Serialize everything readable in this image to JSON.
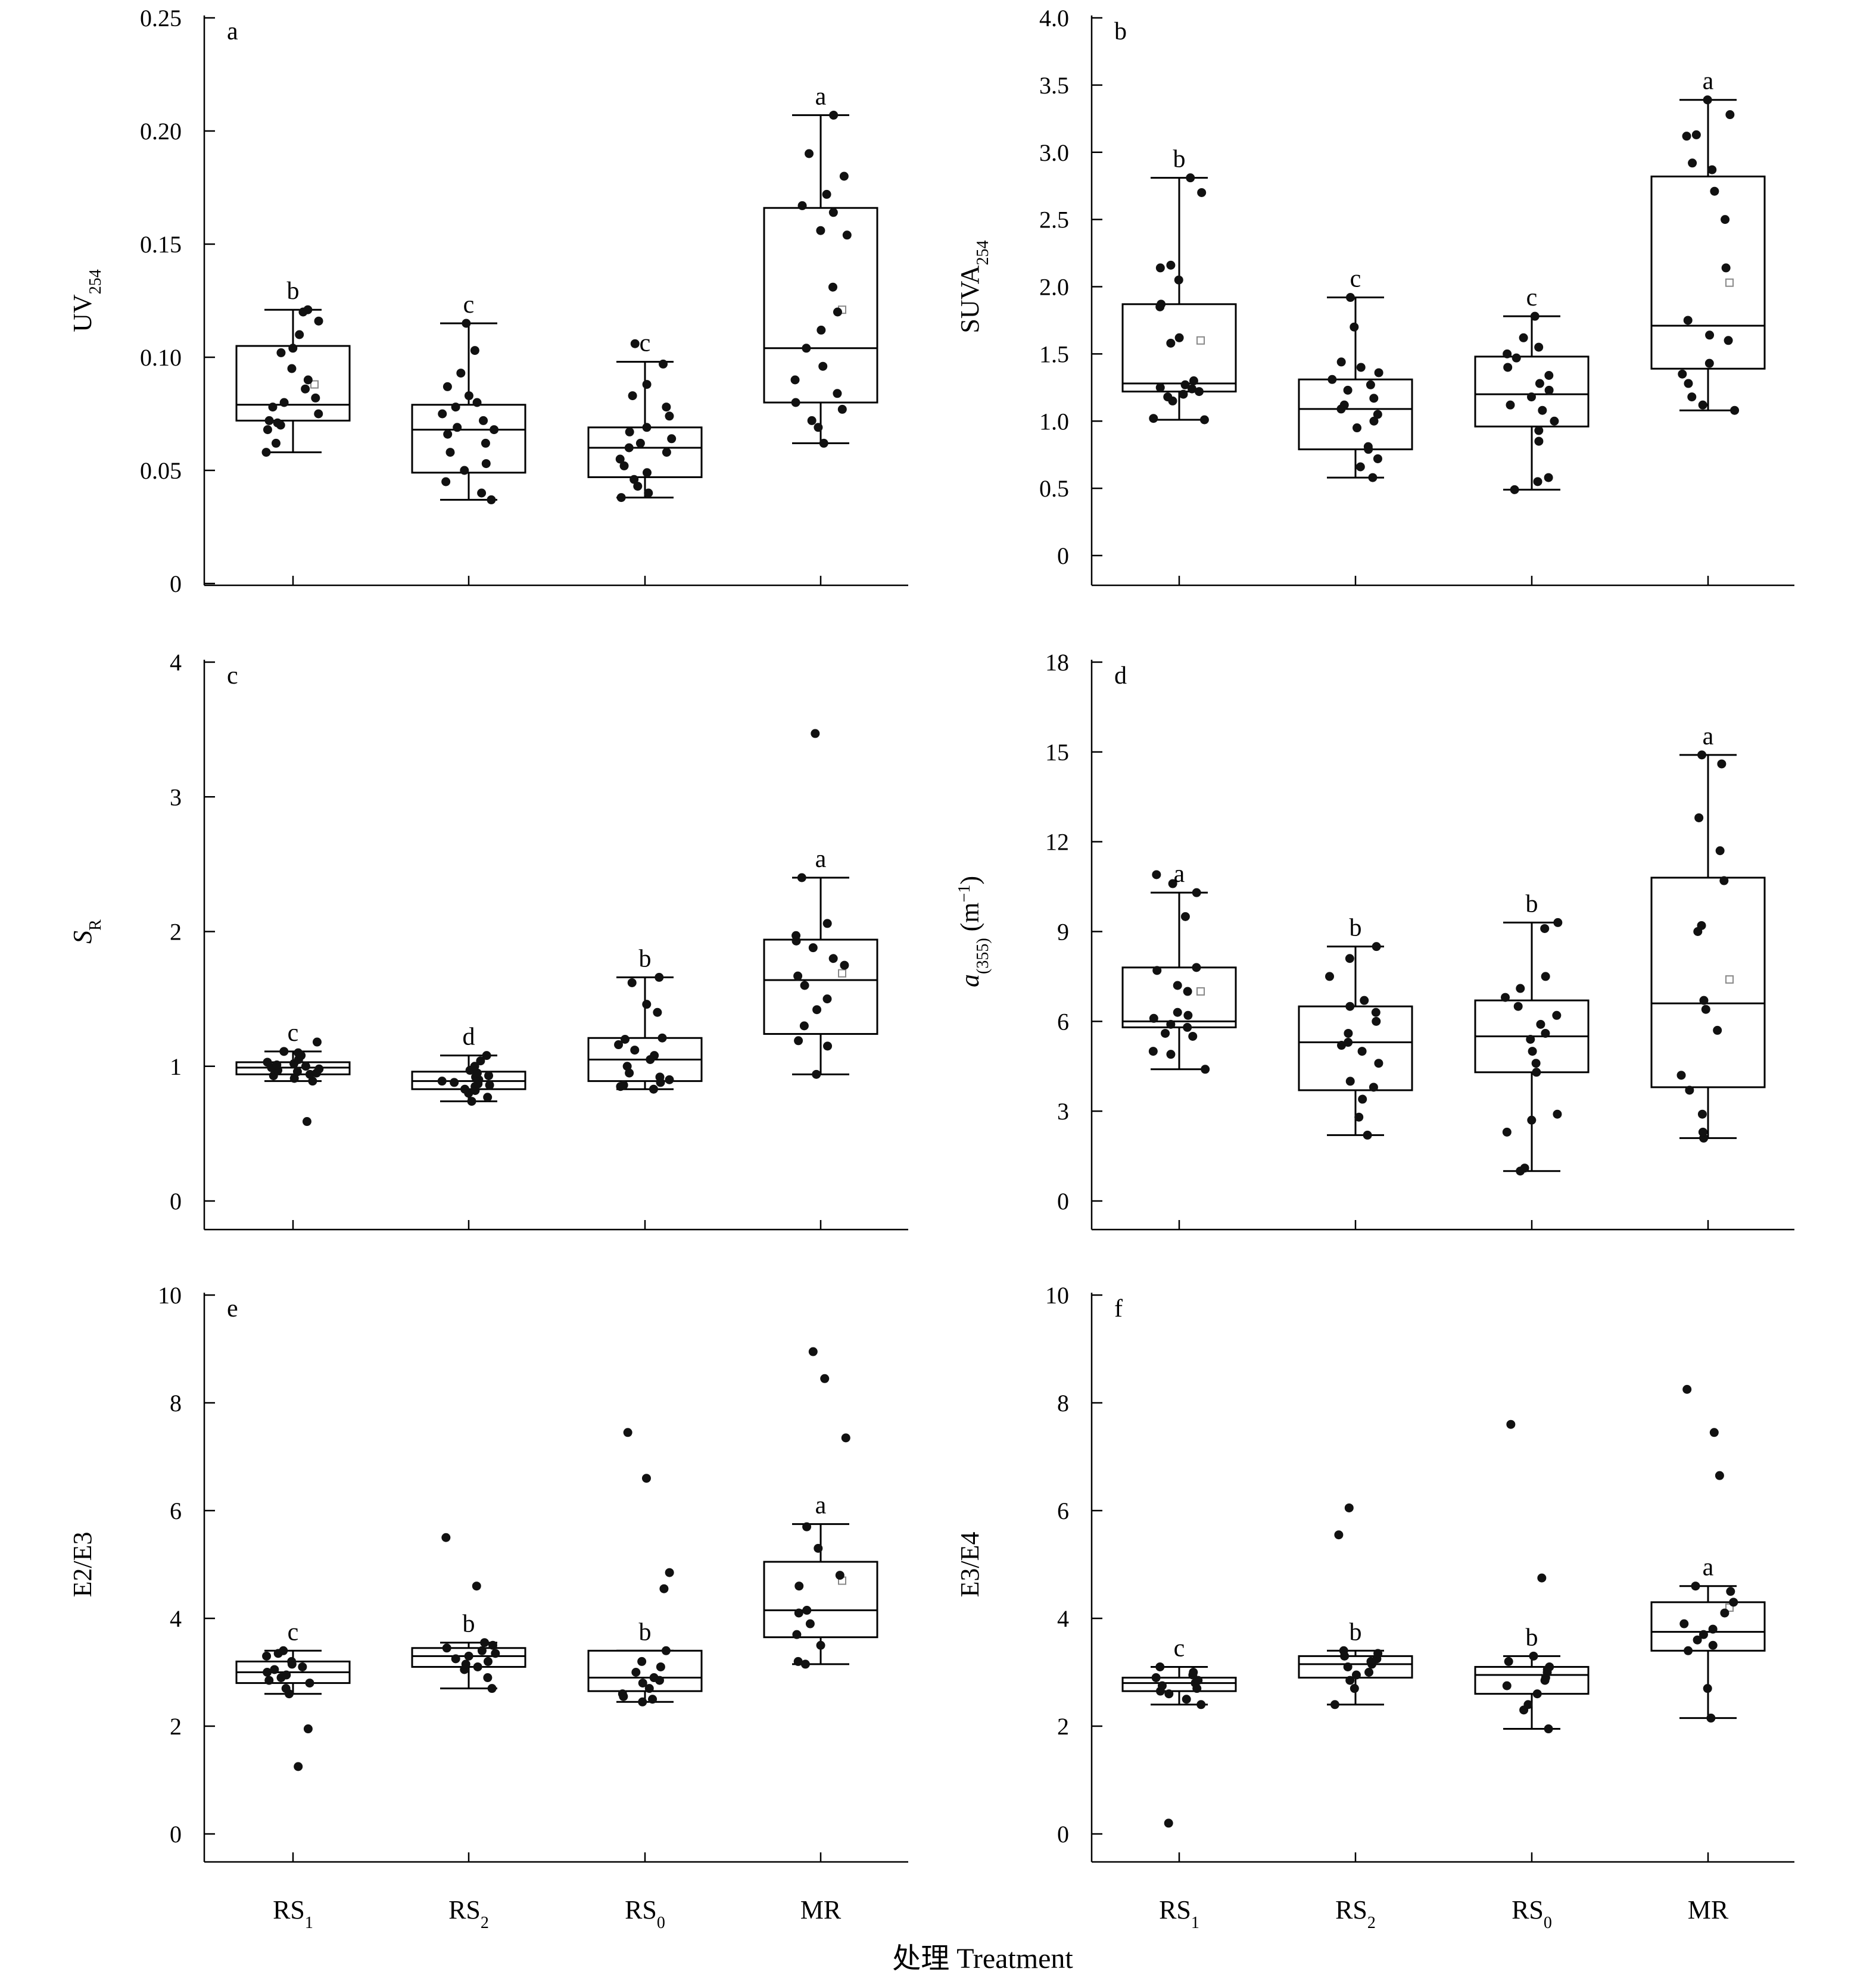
{
  "x_title": "处理 Treatment",
  "chart_data": [
    {
      "type": "box",
      "panel_letter": "a",
      "ylabel": "UV",
      "ylabel_sub": "254",
      "ylabel_italic": false,
      "ylim": [
        0,
        0.25
      ],
      "yticks": [
        0,
        0.05,
        0.1,
        0.15,
        0.2,
        0.25
      ],
      "ytick_labels": [
        "0",
        "0.05",
        "0.10",
        "0.15",
        "0.20",
        "0.25"
      ],
      "categories": [
        {
          "name": "RS",
          "sub": "1"
        },
        {
          "name": "RS",
          "sub": "2"
        },
        {
          "name": "RS",
          "sub": "0"
        },
        {
          "name": "MR",
          "sub": ""
        }
      ],
      "groups": [
        {
          "q1": 0.072,
          "median": 0.079,
          "q3": 0.105,
          "whisker_low": 0.058,
          "whisker_high": 0.121,
          "mean": 0.088,
          "sig": "b",
          "points": [
            0.058,
            0.062,
            0.068,
            0.07,
            0.071,
            0.072,
            0.075,
            0.078,
            0.08,
            0.082,
            0.086,
            0.09,
            0.095,
            0.102,
            0.104,
            0.11,
            0.116,
            0.12,
            0.121
          ]
        },
        {
          "q1": 0.049,
          "median": 0.068,
          "q3": 0.079,
          "whisker_low": 0.037,
          "whisker_high": 0.115,
          "mean": null,
          "sig": "c",
          "points": [
            0.037,
            0.04,
            0.045,
            0.05,
            0.053,
            0.058,
            0.062,
            0.066,
            0.068,
            0.069,
            0.072,
            0.075,
            0.078,
            0.08,
            0.083,
            0.087,
            0.093,
            0.103,
            0.115
          ]
        },
        {
          "q1": 0.047,
          "median": 0.06,
          "q3": 0.069,
          "whisker_low": 0.038,
          "whisker_high": 0.098,
          "mean": null,
          "sig": "c",
          "points": [
            0.038,
            0.04,
            0.043,
            0.046,
            0.049,
            0.052,
            0.055,
            0.058,
            0.06,
            0.062,
            0.064,
            0.067,
            0.069,
            0.074,
            0.078,
            0.083,
            0.088,
            0.097,
            0.106
          ]
        },
        {
          "q1": 0.08,
          "median": 0.104,
          "q3": 0.166,
          "whisker_low": 0.062,
          "whisker_high": 0.207,
          "mean": 0.121,
          "sig": "a",
          "points": [
            0.062,
            0.069,
            0.072,
            0.077,
            0.08,
            0.084,
            0.09,
            0.096,
            0.104,
            0.112,
            0.12,
            0.131,
            0.154,
            0.156,
            0.164,
            0.167,
            0.172,
            0.18,
            0.19,
            0.207
          ]
        }
      ]
    },
    {
      "type": "box",
      "panel_letter": "b",
      "ylabel": "SUVA",
      "ylabel_sub": "254",
      "ylabel_italic": false,
      "ylim": [
        0,
        4.0
      ],
      "yticks": [
        0,
        0.5,
        1.0,
        1.5,
        2.0,
        2.5,
        3.0,
        3.5,
        4.0
      ],
      "ytick_labels": [
        "0",
        "0.5",
        "1.0",
        "1.5",
        "2.0",
        "2.5",
        "3.0",
        "3.5",
        "4.0"
      ],
      "categories": [
        {
          "name": "RS",
          "sub": "1"
        },
        {
          "name": "RS",
          "sub": "2"
        },
        {
          "name": "RS",
          "sub": "0"
        },
        {
          "name": "MR",
          "sub": ""
        }
      ],
      "groups": [
        {
          "q1": 1.22,
          "median": 1.28,
          "q3": 1.87,
          "whisker_low": 1.01,
          "whisker_high": 2.81,
          "mean": 1.6,
          "sig": "b",
          "points": [
            1.01,
            1.02,
            1.15,
            1.18,
            1.2,
            1.22,
            1.24,
            1.25,
            1.27,
            1.3,
            1.58,
            1.62,
            1.85,
            1.87,
            2.05,
            2.14,
            2.16,
            2.7,
            2.81
          ]
        },
        {
          "q1": 0.79,
          "median": 1.09,
          "q3": 1.31,
          "whisker_low": 0.58,
          "whisker_high": 1.92,
          "mean": null,
          "sig": "c",
          "points": [
            0.58,
            0.66,
            0.72,
            0.79,
            0.81,
            0.95,
            1.0,
            1.05,
            1.09,
            1.12,
            1.17,
            1.23,
            1.27,
            1.31,
            1.36,
            1.4,
            1.44,
            1.7,
            1.92
          ]
        },
        {
          "q1": 0.96,
          "median": 1.2,
          "q3": 1.48,
          "whisker_low": 0.49,
          "whisker_high": 1.78,
          "mean": null,
          "sig": "c",
          "points": [
            0.49,
            0.55,
            0.58,
            0.85,
            0.93,
            1.0,
            1.08,
            1.12,
            1.18,
            1.23,
            1.28,
            1.34,
            1.4,
            1.47,
            1.5,
            1.55,
            1.62,
            1.78
          ]
        },
        {
          "q1": 1.39,
          "median": 1.71,
          "q3": 2.82,
          "whisker_low": 1.08,
          "whisker_high": 3.39,
          "mean": 2.03,
          "sig": "a",
          "points": [
            1.08,
            1.12,
            1.18,
            1.28,
            1.35,
            1.43,
            1.6,
            1.64,
            1.75,
            2.14,
            2.5,
            2.71,
            2.87,
            2.92,
            3.12,
            3.13,
            3.28,
            3.39
          ]
        }
      ]
    },
    {
      "type": "box",
      "panel_letter": "c",
      "ylabel": "S",
      "ylabel_sub": "R",
      "ylabel_italic": true,
      "ylim": [
        0,
        4
      ],
      "yticks": [
        0,
        1,
        2,
        3,
        4
      ],
      "ytick_labels": [
        "0",
        "1",
        "2",
        "3",
        "4"
      ],
      "categories": [
        {
          "name": "RS",
          "sub": "1"
        },
        {
          "name": "RS",
          "sub": "2"
        },
        {
          "name": "RS",
          "sub": "0"
        },
        {
          "name": "MR",
          "sub": ""
        }
      ],
      "groups": [
        {
          "q1": 0.94,
          "median": 0.99,
          "q3": 1.03,
          "whisker_low": 0.89,
          "whisker_high": 1.11,
          "mean": null,
          "sig": "c",
          "points": [
            0.59,
            0.89,
            0.91,
            0.93,
            0.94,
            0.95,
            0.96,
            0.97,
            0.98,
            0.99,
            1.0,
            1.01,
            1.02,
            1.03,
            1.05,
            1.08,
            1.1,
            1.11,
            1.18
          ]
        },
        {
          "q1": 0.83,
          "median": 0.89,
          "q3": 0.96,
          "whisker_low": 0.74,
          "whisker_high": 1.08,
          "mean": null,
          "sig": "d",
          "points": [
            0.74,
            0.77,
            0.8,
            0.82,
            0.83,
            0.85,
            0.86,
            0.87,
            0.88,
            0.89,
            0.9,
            0.92,
            0.93,
            0.95,
            0.97,
            1.0,
            1.04,
            1.08
          ]
        },
        {
          "q1": 0.89,
          "median": 1.05,
          "q3": 1.21,
          "whisker_low": 0.83,
          "whisker_high": 1.66,
          "mean": null,
          "sig": "b",
          "points": [
            0.83,
            0.85,
            0.86,
            0.88,
            0.9,
            0.92,
            0.95,
            1.0,
            1.05,
            1.08,
            1.12,
            1.16,
            1.2,
            1.21,
            1.4,
            1.46,
            1.62,
            1.66
          ]
        },
        {
          "q1": 1.24,
          "median": 1.64,
          "q3": 1.94,
          "whisker_low": 0.94,
          "whisker_high": 2.4,
          "mean": 1.69,
          "sig": "a",
          "points": [
            0.94,
            1.15,
            1.19,
            1.3,
            1.42,
            1.5,
            1.6,
            1.67,
            1.75,
            1.8,
            1.88,
            1.93,
            1.97,
            2.06,
            2.4,
            3.47
          ]
        }
      ]
    },
    {
      "type": "box",
      "panel_letter": "d",
      "ylabel": "a",
      "ylabel_sub": "(355)",
      "ylabel_suffix": " (m",
      "ylabel_sup": "−1",
      "ylabel_end": ")",
      "ylabel_italic": true,
      "ylim": [
        0,
        18
      ],
      "yticks": [
        0,
        3,
        6,
        9,
        12,
        15,
        18
      ],
      "ytick_labels": [
        "0",
        "3",
        "6",
        "9",
        "12",
        "15",
        "18"
      ],
      "categories": [
        {
          "name": "RS",
          "sub": "1"
        },
        {
          "name": "RS",
          "sub": "2"
        },
        {
          "name": "RS",
          "sub": "0"
        },
        {
          "name": "MR",
          "sub": ""
        }
      ],
      "groups": [
        {
          "q1": 5.8,
          "median": 6.0,
          "q3": 7.8,
          "whisker_low": 4.4,
          "whisker_high": 10.3,
          "mean": 7.0,
          "sig": "a",
          "points": [
            4.4,
            4.9,
            5.0,
            5.5,
            5.6,
            5.8,
            5.9,
            6.1,
            6.2,
            6.3,
            7.0,
            7.2,
            7.7,
            7.8,
            9.5,
            10.3,
            10.6,
            10.9
          ]
        },
        {
          "q1": 3.7,
          "median": 5.3,
          "q3": 6.5,
          "whisker_low": 2.2,
          "whisker_high": 8.5,
          "mean": null,
          "sig": "b",
          "points": [
            2.2,
            2.8,
            3.4,
            3.8,
            4.0,
            4.6,
            5.0,
            5.2,
            5.3,
            5.6,
            6.0,
            6.3,
            6.5,
            6.7,
            7.5,
            8.1,
            8.5
          ]
        },
        {
          "q1": 4.3,
          "median": 5.5,
          "q3": 6.7,
          "whisker_low": 1.0,
          "whisker_high": 9.3,
          "mean": null,
          "sig": "b",
          "points": [
            1.0,
            1.1,
            2.3,
            2.7,
            2.9,
            4.3,
            4.6,
            5.0,
            5.4,
            5.6,
            5.9,
            6.2,
            6.5,
            6.8,
            7.1,
            7.5,
            9.1,
            9.3
          ]
        },
        {
          "q1": 3.8,
          "median": 6.6,
          "q3": 10.8,
          "whisker_low": 2.1,
          "whisker_high": 14.9,
          "mean": 7.4,
          "sig": "a",
          "points": [
            2.1,
            2.3,
            2.9,
            3.7,
            4.2,
            5.7,
            6.4,
            6.7,
            9.0,
            9.2,
            10.7,
            11.7,
            12.8,
            14.6,
            14.9
          ]
        }
      ]
    },
    {
      "type": "box",
      "panel_letter": "e",
      "ylabel": "E2/E3",
      "ylabel_sub": "",
      "ylabel_italic": false,
      "ylim": [
        0,
        10
      ],
      "yticks": [
        0,
        2,
        4,
        6,
        8,
        10
      ],
      "ytick_labels": [
        "0",
        "2",
        "4",
        "6",
        "8",
        "10"
      ],
      "categories": [
        {
          "name": "RS",
          "sub": "1"
        },
        {
          "name": "RS",
          "sub": "2"
        },
        {
          "name": "RS",
          "sub": "0"
        },
        {
          "name": "MR",
          "sub": ""
        }
      ],
      "groups": [
        {
          "q1": 2.8,
          "median": 3.0,
          "q3": 3.2,
          "whisker_low": 2.6,
          "whisker_high": 3.4,
          "mean": null,
          "sig": "c",
          "points": [
            1.25,
            1.95,
            2.6,
            2.7,
            2.8,
            2.85,
            2.9,
            2.95,
            3.0,
            3.05,
            3.1,
            3.15,
            3.2,
            3.3,
            3.35,
            3.4
          ]
        },
        {
          "q1": 3.1,
          "median": 3.3,
          "q3": 3.45,
          "whisker_low": 2.7,
          "whisker_high": 3.55,
          "mean": null,
          "sig": "b",
          "points": [
            2.7,
            2.9,
            3.05,
            3.1,
            3.15,
            3.2,
            3.25,
            3.3,
            3.35,
            3.4,
            3.45,
            3.5,
            3.55,
            4.6,
            5.5
          ]
        },
        {
          "q1": 2.65,
          "median": 2.9,
          "q3": 3.4,
          "whisker_low": 2.45,
          "whisker_high": 3.4,
          "mean": null,
          "sig": "b",
          "points": [
            2.45,
            2.5,
            2.55,
            2.6,
            2.7,
            2.8,
            2.85,
            2.9,
            3.0,
            3.1,
            3.2,
            3.4,
            4.55,
            4.85,
            6.6,
            7.45
          ]
        },
        {
          "q1": 3.65,
          "median": 4.15,
          "q3": 5.05,
          "whisker_low": 3.15,
          "whisker_high": 5.75,
          "mean": 4.7,
          "sig": "a",
          "points": [
            3.15,
            3.2,
            3.5,
            3.7,
            3.9,
            4.1,
            4.15,
            4.6,
            4.8,
            5.3,
            5.7,
            7.35,
            8.45,
            8.95
          ]
        }
      ]
    },
    {
      "type": "box",
      "panel_letter": "f",
      "ylabel": "E3/E4",
      "ylabel_sub": "",
      "ylabel_italic": false,
      "ylim": [
        0,
        10
      ],
      "yticks": [
        0,
        2,
        4,
        6,
        8,
        10
      ],
      "ytick_labels": [
        "0",
        "2",
        "4",
        "6",
        "8",
        "10"
      ],
      "categories": [
        {
          "name": "RS",
          "sub": "1"
        },
        {
          "name": "RS",
          "sub": "2"
        },
        {
          "name": "RS",
          "sub": "0"
        },
        {
          "name": "MR",
          "sub": ""
        }
      ],
      "groups": [
        {
          "q1": 2.65,
          "median": 2.8,
          "q3": 2.9,
          "whisker_low": 2.4,
          "whisker_high": 3.1,
          "mean": null,
          "sig": "c",
          "points": [
            0.2,
            2.4,
            2.5,
            2.6,
            2.65,
            2.7,
            2.75,
            2.8,
            2.85,
            2.9,
            2.95,
            3.0,
            3.1
          ]
        },
        {
          "q1": 2.9,
          "median": 3.15,
          "q3": 3.3,
          "whisker_low": 2.4,
          "whisker_high": 3.4,
          "mean": null,
          "sig": "b",
          "points": [
            2.4,
            2.7,
            2.85,
            2.95,
            3.0,
            3.1,
            3.15,
            3.2,
            3.25,
            3.3,
            3.35,
            3.4,
            5.55,
            6.05
          ]
        },
        {
          "q1": 2.6,
          "median": 2.95,
          "q3": 3.1,
          "whisker_low": 1.95,
          "whisker_high": 3.3,
          "mean": null,
          "sig": "b",
          "points": [
            1.95,
            2.3,
            2.4,
            2.6,
            2.75,
            2.85,
            2.9,
            3.0,
            3.05,
            3.1,
            3.2,
            3.3,
            4.75,
            7.6
          ]
        },
        {
          "q1": 3.4,
          "median": 3.75,
          "q3": 4.3,
          "whisker_low": 2.15,
          "whisker_high": 4.6,
          "mean": 4.2,
          "sig": "a",
          "points": [
            2.15,
            2.7,
            3.4,
            3.5,
            3.6,
            3.7,
            3.8,
            3.9,
            4.1,
            4.3,
            4.5,
            4.6,
            6.65,
            7.45,
            8.25
          ]
        }
      ]
    }
  ]
}
